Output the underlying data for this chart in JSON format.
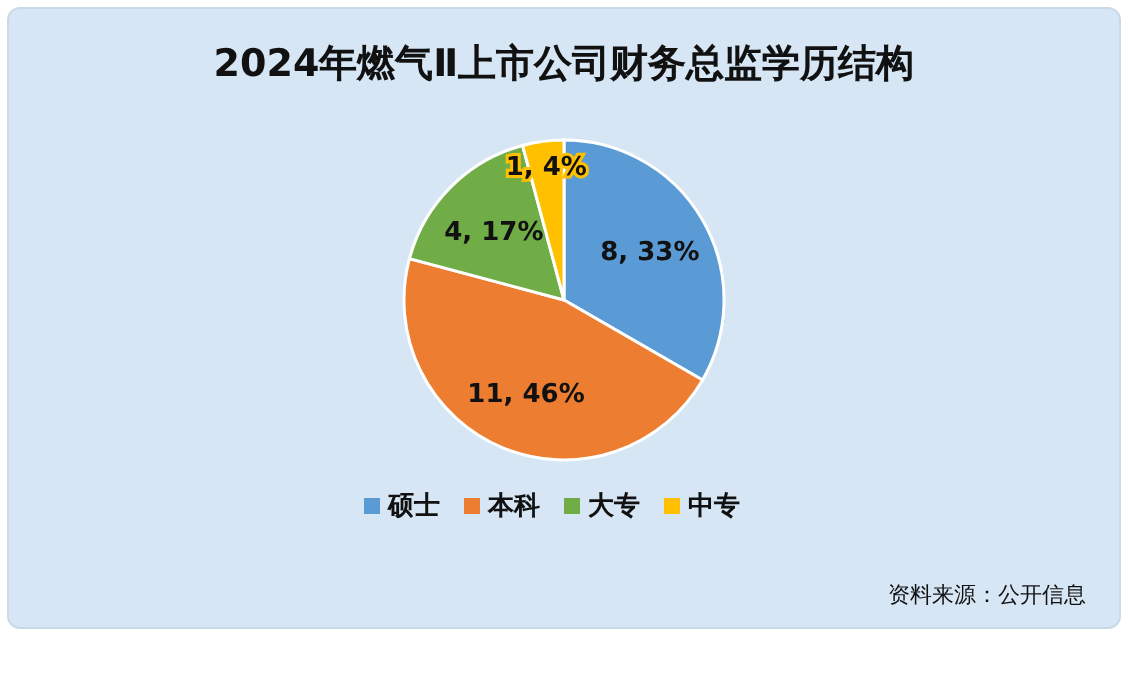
{
  "chart_data": {
    "type": "pie",
    "title": "2024年燃气Ⅱ上市公司财务总监学历结构",
    "categories": [
      "硕士",
      "本科",
      "大专",
      "中专"
    ],
    "values": [
      8,
      11,
      4,
      1
    ],
    "colors": [
      "#5b9bd5",
      "#ed7d31",
      "#70ad47",
      "#ffc000"
    ],
    "value_labels": [
      "8, 33%",
      "11, 46%",
      "4, 17%",
      "1, 4%"
    ],
    "legend": "bottom",
    "annotations": [
      "资料来源：公开信息"
    ]
  }
}
